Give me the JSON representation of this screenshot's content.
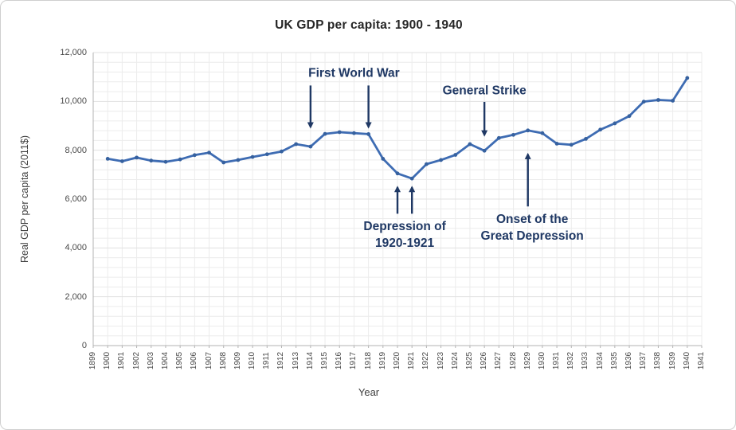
{
  "chart_data": {
    "type": "line",
    "title": "UK GDP per capita: 1900 - 1940",
    "xlabel": "Year",
    "ylabel": "Real GDP per capita (2011$)",
    "x": [
      1900,
      1901,
      1902,
      1903,
      1904,
      1905,
      1906,
      1907,
      1908,
      1909,
      1910,
      1911,
      1912,
      1913,
      1914,
      1915,
      1916,
      1917,
      1918,
      1919,
      1920,
      1921,
      1922,
      1923,
      1924,
      1925,
      1926,
      1927,
      1928,
      1929,
      1930,
      1931,
      1932,
      1933,
      1934,
      1935,
      1936,
      1937,
      1938,
      1939,
      1940
    ],
    "values": [
      7650,
      7550,
      7700,
      7575,
      7525,
      7625,
      7800,
      7900,
      7500,
      7600,
      7725,
      7835,
      7950,
      8250,
      8150,
      8670,
      8740,
      8700,
      8660,
      7650,
      7050,
      6840,
      7430,
      7600,
      7810,
      8250,
      7980,
      8500,
      8630,
      8810,
      8700,
      8270,
      8225,
      8465,
      8845,
      9100,
      9400,
      9990,
      10060,
      10030,
      10960
    ],
    "xlim": [
      1899,
      1941
    ],
    "ylim": [
      0,
      12000
    ],
    "y_major_unit": 2000,
    "y_minor_unit": 400,
    "grid": true,
    "legend": false,
    "y_tick_labels": [
      "0",
      "2,000",
      "4,000",
      "6,000",
      "8,000",
      "10,000",
      "12,000"
    ],
    "x_tick_labels": [
      "1899",
      "1900",
      "1901",
      "1902",
      "1903",
      "1904",
      "1905",
      "1906",
      "1907",
      "1908",
      "1909",
      "1910",
      "1911",
      "1912",
      "1913",
      "1914",
      "1915",
      "1916",
      "1917",
      "1918",
      "1919",
      "1920",
      "1921",
      "1922",
      "1923",
      "1924",
      "1925",
      "1926",
      "1927",
      "1928",
      "1929",
      "1930",
      "1931",
      "1932",
      "1933",
      "1934",
      "1935",
      "1936",
      "1937",
      "1938",
      "1939",
      "1940",
      "1941"
    ],
    "annotations": [
      {
        "text_lines": [
          "First World War"
        ],
        "label_pos": {
          "year": 1917.0,
          "value": 11150
        },
        "arrows": [
          {
            "year": 1914,
            "from_value": 10650,
            "to_value": 8950
          },
          {
            "year": 1918,
            "from_value": 10650,
            "to_value": 8950
          }
        ],
        "direction": "down"
      },
      {
        "text_lines": [
          "Depression of",
          "1920-1921"
        ],
        "label_pos": {
          "year": 1920.5,
          "value": 4860
        },
        "arrows": [
          {
            "year": 1920,
            "from_value": 5400,
            "to_value": 6480
          },
          {
            "year": 1921,
            "from_value": 5400,
            "to_value": 6480
          }
        ],
        "direction": "up"
      },
      {
        "text_lines": [
          "General Strike"
        ],
        "label_pos": {
          "year": 1926.0,
          "value": 10440
        },
        "arrows": [
          {
            "year": 1926,
            "from_value": 9980,
            "to_value": 8620
          }
        ],
        "direction": "down"
      },
      {
        "text_lines": [
          "Onset of the",
          "Great Depression"
        ],
        "label_pos": {
          "year": 1929.3,
          "value": 5180
        },
        "arrows": [
          {
            "year": 1929,
            "from_value": 5700,
            "to_value": 7830
          }
        ],
        "direction": "up"
      }
    ]
  },
  "style": {
    "line_color": "#3e6cb3",
    "marker_color": "#36619f",
    "annotation_color": "#1f3864",
    "axis_color": "#b3b3b3",
    "grid_minor_color": "#ececec",
    "grid_major_color": "#e1e1e1",
    "tick_label_color": "#4a4a4a"
  }
}
